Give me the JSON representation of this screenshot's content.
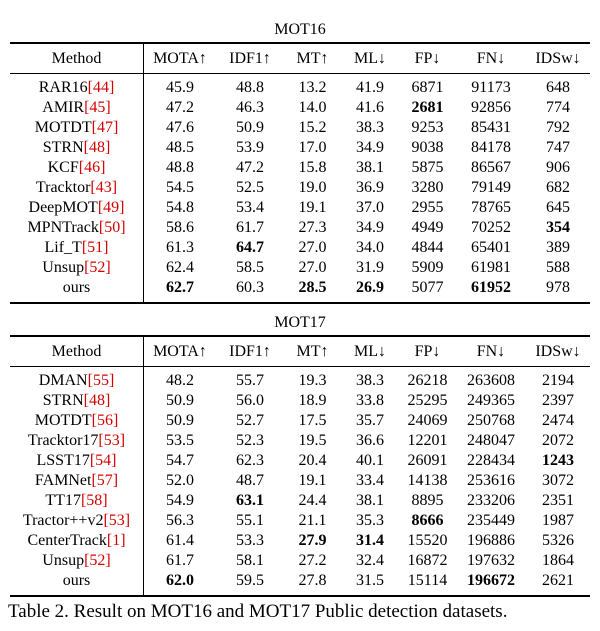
{
  "tables": [
    {
      "title": "MOT16",
      "headers": [
        "Method",
        "MOTA↑",
        "IDF1↑",
        "MT↑",
        "ML↓",
        "FP↓",
        "FN↓",
        "IDSw↓"
      ],
      "rows": [
        {
          "name": "RAR16",
          "ref": "[44]",
          "values": [
            "45.9",
            "48.8",
            "13.2",
            "41.9",
            "6871",
            "91173",
            "648"
          ],
          "bold": []
        },
        {
          "name": "AMIR",
          "ref": "[45]",
          "values": [
            "47.2",
            "46.3",
            "14.0",
            "41.6",
            "2681",
            "92856",
            "774"
          ],
          "bold": [
            4
          ]
        },
        {
          "name": "MOTDT",
          "ref": "[47]",
          "values": [
            "47.6",
            "50.9",
            "15.2",
            "38.3",
            "9253",
            "85431",
            "792"
          ],
          "bold": []
        },
        {
          "name": "STRN",
          "ref": "[48]",
          "values": [
            "48.5",
            "53.9",
            "17.0",
            "34.9",
            "9038",
            "84178",
            "747"
          ],
          "bold": []
        },
        {
          "name": "KCF",
          "ref": "[46]",
          "values": [
            "48.8",
            "47.2",
            "15.8",
            "38.1",
            "5875",
            "86567",
            "906"
          ],
          "bold": []
        },
        {
          "name": "Tracktor",
          "ref": "[43]",
          "values": [
            "54.5",
            "52.5",
            "19.0",
            "36.9",
            "3280",
            "79149",
            "682"
          ],
          "bold": []
        },
        {
          "name": "DeepMOT",
          "ref": "[49]",
          "values": [
            "54.8",
            "53.4",
            "19.1",
            "37.0",
            "2955",
            "78765",
            "645"
          ],
          "bold": []
        },
        {
          "name": "MPNTrack",
          "ref": "[50]",
          "values": [
            "58.6",
            "61.7",
            "27.3",
            "34.9",
            "4949",
            "70252",
            "354"
          ],
          "bold": [
            6
          ]
        },
        {
          "name": "Lif_T",
          "ref": "[51]",
          "values": [
            "61.3",
            "64.7",
            "27.0",
            "34.0",
            "4844",
            "65401",
            "389"
          ],
          "bold": [
            1
          ]
        },
        {
          "name": "Unsup",
          "ref": "[52]",
          "values": [
            "62.4",
            "58.5",
            "27.0",
            "31.9",
            "5909",
            "61981",
            "588"
          ],
          "bold": []
        },
        {
          "name": "ours",
          "ref": "",
          "values": [
            "62.7",
            "60.3",
            "28.5",
            "26.9",
            "5077",
            "61952",
            "978"
          ],
          "bold": [
            0,
            2,
            3,
            5
          ]
        }
      ]
    },
    {
      "title": "MOT17",
      "headers": [
        "Method",
        "MOTA↑",
        "IDF1↑",
        "MT↑",
        "ML↓",
        "FP↓",
        "FN↓",
        "IDSw↓"
      ],
      "rows": [
        {
          "name": "DMAN",
          "ref": "[55]",
          "values": [
            "48.2",
            "55.7",
            "19.3",
            "38.3",
            "26218",
            "263608",
            "2194"
          ],
          "bold": []
        },
        {
          "name": "STRN",
          "ref": "[48]",
          "values": [
            "50.9",
            "56.0",
            "18.9",
            "33.8",
            "25295",
            "249365",
            "2397"
          ],
          "bold": []
        },
        {
          "name": "MOTDT",
          "ref": "[56]",
          "values": [
            "50.9",
            "52.7",
            "17.5",
            "35.7",
            "24069",
            "250768",
            "2474"
          ],
          "bold": []
        },
        {
          "name": "Tracktor17",
          "ref": "[53]",
          "values": [
            "53.5",
            "52.3",
            "19.5",
            "36.6",
            "12201",
            "248047",
            "2072"
          ],
          "bold": []
        },
        {
          "name": "LSST17",
          "ref": "[54]",
          "values": [
            "54.7",
            "62.3",
            "20.4",
            "40.1",
            "26091",
            "228434",
            "1243"
          ],
          "bold": [
            6
          ]
        },
        {
          "name": "FAMNet",
          "ref": "[57]",
          "values": [
            "52.0",
            "48.7",
            "19.1",
            "33.4",
            "14138",
            "253616",
            "3072"
          ],
          "bold": []
        },
        {
          "name": "TT17",
          "ref": "[58]",
          "values": [
            "54.9",
            "63.1",
            "24.4",
            "38.1",
            "8895",
            "233206",
            "2351"
          ],
          "bold": [
            1
          ]
        },
        {
          "name": "Tractor++v2",
          "ref": "[53]",
          "values": [
            "56.3",
            "55.1",
            "21.1",
            "35.3",
            "8666",
            "235449",
            "1987"
          ],
          "bold": [
            4
          ]
        },
        {
          "name": "CenterTrack",
          "ref": "[1]",
          "values": [
            "61.4",
            "53.3",
            "27.9",
            "31.4",
            "15520",
            "196886",
            "5326"
          ],
          "bold": [
            2,
            3
          ]
        },
        {
          "name": "Unsup",
          "ref": "[52]",
          "values": [
            "61.7",
            "58.1",
            "27.2",
            "32.4",
            "16872",
            "197632",
            "1864"
          ],
          "bold": []
        },
        {
          "name": "ours",
          "ref": "",
          "values": [
            "62.0",
            "59.5",
            "27.8",
            "31.5",
            "15114",
            "196672",
            "2621"
          ],
          "bold": [
            0,
            5
          ]
        }
      ]
    }
  ],
  "caption": "Table 2. Result on MOT16 and MOT17 Public detection datasets."
}
